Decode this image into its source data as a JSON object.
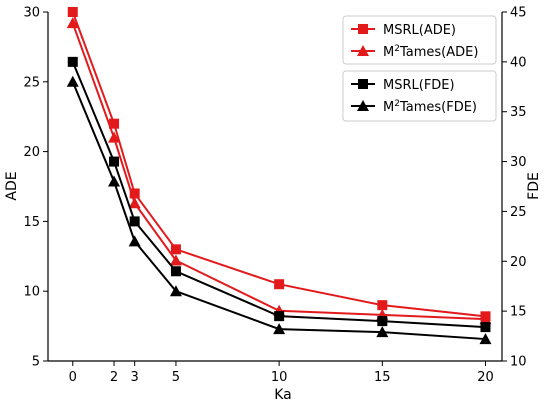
{
  "chart_data": {
    "type": "line",
    "x": [
      0,
      2,
      3,
      5,
      10,
      15,
      20
    ],
    "xlabel": "Ka",
    "ylabel_left": "ADE",
    "ylabel_right": "FDE",
    "ylim_left": [
      5,
      30
    ],
    "ylim_right": [
      10,
      45
    ],
    "xlim": [
      -1.2,
      20.8
    ],
    "xticks": [
      "0",
      "2",
      "3",
      "5",
      "10",
      "15",
      "20"
    ],
    "yticks_left": [
      "5",
      "10",
      "15",
      "20",
      "25",
      "30"
    ],
    "yticks_right": [
      "10",
      "15",
      "20",
      "25",
      "30",
      "35",
      "40",
      "45"
    ],
    "grid": false,
    "legends": [
      {
        "placement": "top-right",
        "entries": [
          {
            "name": "MSRL(ADE)",
            "base": "MSRL(ADE)",
            "sup": "",
            "rest": "",
            "color": "#e31a1c",
            "marker": "square"
          },
          {
            "name": "M2Tames(ADE)",
            "base": "M",
            "sup": "2",
            "rest": "Tames(ADE)",
            "color": "#e31a1c",
            "marker": "triangle"
          }
        ]
      },
      {
        "placement": "upper-right",
        "entries": [
          {
            "name": "MSRL(FDE)",
            "base": "MSRL(FDE)",
            "sup": "",
            "rest": "",
            "color": "#000000",
            "marker": "square"
          },
          {
            "name": "M2Tames(FDE)",
            "base": "M",
            "sup": "2",
            "rest": "Tames(FDE)",
            "color": "#000000",
            "marker": "triangle"
          }
        ]
      }
    ],
    "series": [
      {
        "name": "MSRL(ADE)",
        "axis": "left",
        "color": "#e31a1c",
        "marker": "square",
        "values": [
          30.0,
          22.0,
          17.0,
          13.0,
          10.5,
          9.0,
          8.2
        ]
      },
      {
        "name": "M2Tames(ADE)",
        "axis": "left",
        "color": "#e31a1c",
        "marker": "triangle",
        "values": [
          29.2,
          21.0,
          16.3,
          12.2,
          8.6,
          8.3,
          8.0
        ]
      },
      {
        "name": "MSRL(FDE)",
        "axis": "right",
        "color": "#000000",
        "marker": "square",
        "values": [
          40.0,
          30.0,
          24.0,
          19.0,
          14.5,
          14.0,
          13.4
        ]
      },
      {
        "name": "M2Tames(FDE)",
        "axis": "right",
        "color": "#000000",
        "marker": "triangle",
        "values": [
          38.0,
          28.0,
          22.0,
          17.0,
          13.2,
          12.9,
          12.2
        ]
      }
    ]
  }
}
